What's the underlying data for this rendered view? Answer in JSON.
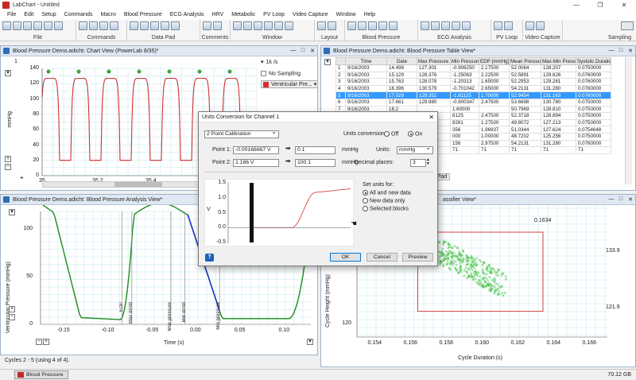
{
  "app": {
    "title": "LabChart - Untitled",
    "controls": [
      "—",
      "❐",
      "✕"
    ]
  },
  "menu": [
    "File",
    "Edit",
    "Setup",
    "Commands",
    "Macro",
    "Blood Pressure",
    "ECG Analysis",
    "HRV",
    "Metabolic",
    "PV Loop",
    "Video Capture",
    "Window",
    "Help"
  ],
  "toolbar": {
    "groups": [
      "File",
      "Commands",
      "Data Pad",
      "Comments",
      "Window",
      "Layout",
      "Blood Pressure",
      "ECG Analysis",
      "PV Loop",
      "Video Capture",
      "Sampling"
    ]
  },
  "chart_view": {
    "title": "Blood Pressure Demo.adicht: Chart View (PowerLab 8/35)*",
    "channel_number": "1",
    "rate": "1k /s",
    "sampling": "No Sampling",
    "channel_name": "Ventricular Pre...",
    "y_unit": "mmHg",
    "y_ticks": [
      "140",
      "120",
      "100",
      "80",
      "60",
      "40",
      "20",
      "0"
    ],
    "x_ticks": [
      "35",
      "35.2",
      "35.4",
      "35.6",
      "35.8"
    ]
  },
  "table_view": {
    "title": "Blood Pressure Demo.adicht: Blood Pressure Table View*",
    "columns": [
      "",
      "Time",
      "Date",
      "Max Pressure (mm",
      "Min Pressure (m",
      "EDP (mmHg)",
      "Mean Pressure (m",
      "Max-Min Pressure",
      "Systolic Duration"
    ],
    "rows": [
      [
        "1",
        "9/16/2003 14.498",
        "127.301",
        "-0.906250",
        "2.17500",
        "52.0064",
        "128.207",
        "0.0750000"
      ],
      [
        "2",
        "9/16/2003 15.129",
        "128.376",
        "-1.25063",
        "2.22500",
        "52.5891",
        "129.626",
        "0.0760000"
      ],
      [
        "3",
        "9/16/2003 15.763",
        "128.078",
        "-1.20313",
        "1.65000",
        "52.2953",
        "129.281",
        "0.0760000"
      ],
      [
        "4",
        "9/16/2003 16.396",
        "130.579",
        "-0.701042",
        "2.65000",
        "54.2131",
        "131.280",
        "0.0760000"
      ],
      [
        "5",
        "9/16/2003 17.029",
        "129.352",
        "-1.81125",
        "1.70000",
        "52.9454",
        "131.163",
        "0.0760000"
      ],
      [
        "6",
        "9/16/2003 17.661",
        "129.980",
        "-0.800347",
        "2.47500",
        "53.6698",
        "130.780",
        "0.0750000"
      ],
      [
        "7",
        "9/16/2003 18.2",
        "",
        "1.60000",
        "",
        "50.7969",
        "128.810",
        "0.0750000"
      ],
      [
        "8",
        "",
        "",
        "8125",
        "2.47500",
        "52.3718",
        "128.894",
        "0.0750000"
      ],
      [
        "9",
        "",
        "",
        "8281",
        "1.27500",
        "49.8072",
        "127.213",
        "0.0750000"
      ],
      [
        "10",
        "",
        "",
        "356",
        "1.96937",
        "51.0344",
        "127.624",
        "0.0754648"
      ],
      [
        "11",
        "",
        "",
        "000",
        "1.00000",
        "48.7202",
        "125.256",
        "0.0750000"
      ],
      [
        "12",
        "",
        "",
        "156",
        "2.97500",
        "54.2131",
        "131.280",
        "0.0760000"
      ],
      [
        "13",
        "",
        "",
        "71",
        "71",
        "71",
        "71",
        "71"
      ]
    ],
    "selected_row": "5",
    "data_pad_label": "ata Pad"
  },
  "analysis_view": {
    "title": "Blood Pressure Demo.adicht: Blood Pressure Analysis View*",
    "y_label": "Ventricular Pressure (mmHg)",
    "x_label": "Time (s)",
    "y_ticks": [
      "100",
      "50",
      "0"
    ],
    "x_ticks": [
      "-0.15",
      "-0.10",
      "-0.05",
      "0.00",
      "0.05",
      "0.10"
    ],
    "markers": [
      "EDP",
      "Max dP/dt",
      "Max pressure",
      "Min dP/dt",
      "Min pressure"
    ],
    "cycles_text": "Cycles 2 - 5 (using 4 of 4)."
  },
  "classifier_view": {
    "title": "assifier View*",
    "y_label": "Cycle Height (mmHg)",
    "x_label": "Cycle Duration (s)",
    "y_ticks": [
      "130",
      "120"
    ],
    "x_ticks": [
      "0.154",
      "0.156",
      "0.158",
      "0.160",
      "0.162",
      "0.164",
      "0.166"
    ],
    "top_value": "0.1634",
    "right_values": [
      "133.9",
      "121.9"
    ],
    "left_value": "0.1564"
  },
  "dialog": {
    "title": "Units Conversion for Channel 1",
    "close": "✕",
    "mode": "2 Point Calibration",
    "units_conversion_label": "Units conversion:",
    "off_label": "Off",
    "on_label": "On",
    "point1_label": "Point 1:",
    "point1_value": "-0.00166667 V",
    "point1_target": "0.1",
    "point1_unit": "mmHg",
    "point2_label": "Point 2:",
    "point2_value": "1.186 V",
    "point2_target": "100.1",
    "point2_unit": "mmHg",
    "units_label": "Units:",
    "units_value": "mmHg",
    "decimal_label": "Decimal places:",
    "decimal_value": "3",
    "preview_axis_unit": "V",
    "preview_y_ticks": [
      "1.5",
      "1.0",
      "0.5",
      "0.0",
      "-0.5"
    ],
    "set_units_label": "Set units for:",
    "options": [
      "All and new data",
      "New data only",
      "Selected blocks"
    ],
    "ok": "OK",
    "cancel": "Cancel",
    "preview": "Preview",
    "help": "?"
  },
  "status": {
    "task_label": "Blood Pressure ...",
    "memory": "70.12 GB"
  },
  "colors": {
    "trace_red": "#d32f2f",
    "trace_green": "#1f8a1f",
    "trace_blue": "#1a35c8",
    "selection": "#3399ff",
    "grid": "#bfe6ee"
  }
}
